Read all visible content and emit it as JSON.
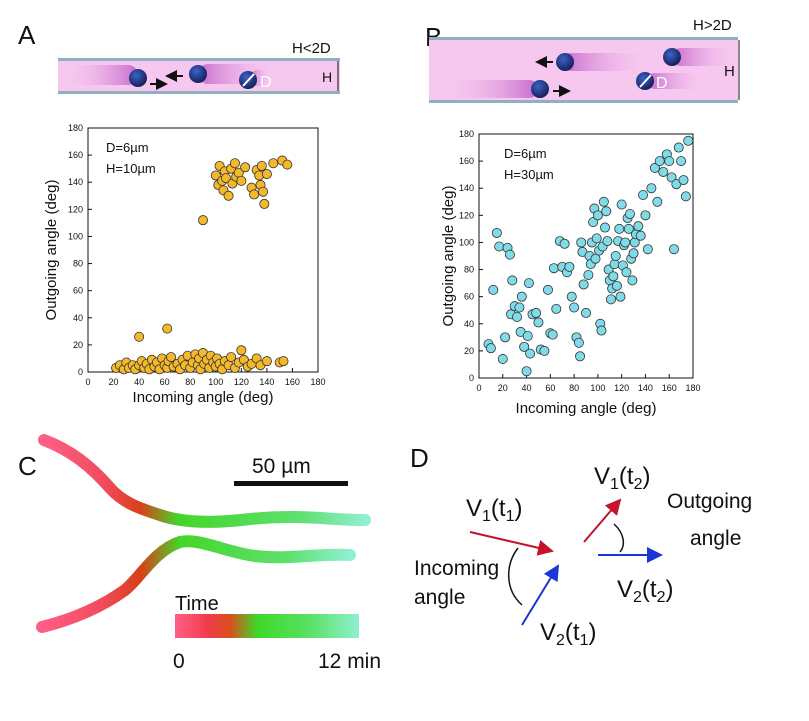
{
  "panels": {
    "A": {
      "label": "A",
      "channel": {
        "height_label": "H<2D",
        "h_symbol": "H",
        "d_symbol": "D"
      },
      "legend": {
        "d_text": "D=6µm",
        "h_text": "H=10µm"
      }
    },
    "B": {
      "label": "B",
      "channel": {
        "height_label": "H>2D",
        "h_symbol": "H",
        "d_symbol": "D"
      },
      "legend": {
        "d_text": "D=6µm",
        "h_text": "H=30µm"
      }
    },
    "C": {
      "label": "C",
      "scale_bar": "50 µm",
      "time_label": "Time",
      "time_start": "0",
      "time_end": "12 min"
    },
    "D": {
      "label": "D",
      "v1t1_main": "V",
      "v1t1_sub": "1",
      "v1t1_arg": "(t",
      "v1t1_argsub": "1",
      "v1t1_close": ")",
      "v1t2_main": "V",
      "v1t2_sub": "1",
      "v1t2_arg": "(t",
      "v1t2_argsub": "2",
      "v1t2_close": ")",
      "v2t1_main": "V",
      "v2t1_sub": "2",
      "v2t1_arg": "(t",
      "v2t1_argsub": "1",
      "v2t1_close": ")",
      "v2t2_main": "V",
      "v2t2_sub": "2",
      "v2t2_arg": "(t",
      "v2t2_argsub": "2",
      "v2t2_close": ")",
      "incoming_line1": "Incoming",
      "incoming_line2": "angle",
      "outgoing_line1": "Outgoing",
      "outgoing_line2": "angle"
    }
  },
  "colors": {
    "channel_fill": "#f7c8ef",
    "channel_wall": "#8fb0c0",
    "particle": "#2b3f8c",
    "scatter_A": "#f5b82a",
    "scatter_B": "#7fdbe8",
    "red_arrow": "#c4122f",
    "blue_arrow": "#1a36d6",
    "trace_start": "#ff5f86",
    "trace_mid": "#e03a1a",
    "trace_green": "#3ed92a",
    "trace_end": "#8ff0d0"
  },
  "chart_data": [
    {
      "type": "scatter",
      "panel": "A",
      "xlabel": "Incoming angle (deg)",
      "ylabel": "Outgoing angle (deg)",
      "xlim": [
        0,
        180
      ],
      "ylim": [
        0,
        180
      ],
      "xticks": [
        0,
        20,
        40,
        60,
        80,
        100,
        120,
        140,
        160,
        180
      ],
      "yticks": [
        0,
        20,
        40,
        60,
        80,
        100,
        120,
        140,
        160,
        180
      ],
      "series": [
        {
          "name": "H=10µm",
          "points": [
            [
              22,
              3
            ],
            [
              25,
              5
            ],
            [
              28,
              2
            ],
            [
              30,
              7
            ],
            [
              32,
              3
            ],
            [
              35,
              5
            ],
            [
              37,
              2
            ],
            [
              40,
              5
            ],
            [
              42,
              8
            ],
            [
              44,
              3
            ],
            [
              46,
              6
            ],
            [
              48,
              2
            ],
            [
              50,
              9
            ],
            [
              52,
              4
            ],
            [
              54,
              7
            ],
            [
              56,
              2
            ],
            [
              58,
              10
            ],
            [
              60,
              5
            ],
            [
              62,
              3
            ],
            [
              63,
              8
            ],
            [
              65,
              11
            ],
            [
              67,
              4
            ],
            [
              70,
              6
            ],
            [
              72,
              2
            ],
            [
              74,
              9
            ],
            [
              76,
              5
            ],
            [
              78,
              12
            ],
            [
              80,
              3
            ],
            [
              82,
              7
            ],
            [
              84,
              13
            ],
            [
              86,
              5
            ],
            [
              87,
              10
            ],
            [
              88,
              2
            ],
            [
              90,
              14
            ],
            [
              91,
              6
            ],
            [
              93,
              9
            ],
            [
              95,
              3
            ],
            [
              96,
              12
            ],
            [
              98,
              7
            ],
            [
              100,
              4
            ],
            [
              101,
              10
            ],
            [
              103,
              6
            ],
            [
              105,
              2
            ],
            [
              107,
              8
            ],
            [
              110,
              5
            ],
            [
              112,
              11
            ],
            [
              115,
              3
            ],
            [
              118,
              7
            ],
            [
              120,
              16
            ],
            [
              122,
              9
            ],
            [
              125,
              4
            ],
            [
              128,
              6
            ],
            [
              132,
              10
            ],
            [
              135,
              5
            ],
            [
              140,
              8
            ],
            [
              150,
              7
            ],
            [
              153,
              8
            ],
            [
              40,
              26
            ],
            [
              62,
              32
            ],
            [
              90,
              112
            ],
            [
              100,
              145
            ],
            [
              102,
              138
            ],
            [
              103,
              152
            ],
            [
              105,
              141
            ],
            [
              106,
              134
            ],
            [
              107,
              148
            ],
            [
              108,
              143
            ],
            [
              110,
              130
            ],
            [
              112,
              150
            ],
            [
              113,
              139
            ],
            [
              115,
              154
            ],
            [
              116,
              144
            ],
            [
              118,
              147
            ],
            [
              120,
              141
            ],
            [
              123,
              151
            ],
            [
              128,
              136
            ],
            [
              130,
              131
            ],
            [
              132,
              149
            ],
            [
              134,
              145
            ],
            [
              135,
              138
            ],
            [
              136,
              152
            ],
            [
              137,
              133
            ],
            [
              138,
              124
            ],
            [
              140,
              146
            ],
            [
              145,
              154
            ],
            [
              152,
              156
            ],
            [
              156,
              153
            ]
          ]
        }
      ]
    },
    {
      "type": "scatter",
      "panel": "B",
      "xlabel": "Incoming angle (deg)",
      "ylabel": "Outgoing angle (deg)",
      "xlim": [
        0,
        180
      ],
      "ylim": [
        0,
        180
      ],
      "xticks": [
        0,
        20,
        40,
        60,
        80,
        100,
        120,
        140,
        160,
        180
      ],
      "yticks": [
        0,
        20,
        40,
        60,
        80,
        100,
        120,
        140,
        160,
        180
      ],
      "series": [
        {
          "name": "H=30µm",
          "points": [
            [
              8,
              25
            ],
            [
              10,
              22
            ],
            [
              12,
              65
            ],
            [
              15,
              107
            ],
            [
              17,
              97
            ],
            [
              20,
              14
            ],
            [
              22,
              30
            ],
            [
              24,
              96
            ],
            [
              26,
              91
            ],
            [
              27,
              47
            ],
            [
              28,
              72
            ],
            [
              30,
              53
            ],
            [
              32,
              45
            ],
            [
              34,
              52
            ],
            [
              35,
              34
            ],
            [
              36,
              60
            ],
            [
              38,
              23
            ],
            [
              40,
              5
            ],
            [
              41,
              31
            ],
            [
              42,
              70
            ],
            [
              43,
              18
            ],
            [
              45,
              47
            ],
            [
              48,
              48
            ],
            [
              50,
              41
            ],
            [
              52,
              21
            ],
            [
              55,
              20
            ],
            [
              58,
              65
            ],
            [
              60,
              33
            ],
            [
              62,
              32
            ],
            [
              63,
              81
            ],
            [
              65,
              51
            ],
            [
              68,
              101
            ],
            [
              70,
              82
            ],
            [
              72,
              99
            ],
            [
              74,
              78
            ],
            [
              76,
              82
            ],
            [
              78,
              60
            ],
            [
              80,
              52
            ],
            [
              82,
              30
            ],
            [
              84,
              26
            ],
            [
              85,
              16
            ],
            [
              86,
              100
            ],
            [
              87,
              93
            ],
            [
              88,
              69
            ],
            [
              90,
              48
            ],
            [
              92,
              76
            ],
            [
              93,
              90
            ],
            [
              94,
              84
            ],
            [
              95,
              100
            ],
            [
              96,
              115
            ],
            [
              97,
              125
            ],
            [
              98,
              88
            ],
            [
              99,
              103
            ],
            [
              100,
              120
            ],
            [
              101,
              94
            ],
            [
              102,
              40
            ],
            [
              103,
              35
            ],
            [
              104,
              97
            ],
            [
              105,
              130
            ],
            [
              106,
              111
            ],
            [
              107,
              123
            ],
            [
              108,
              101
            ],
            [
              109,
              80
            ],
            [
              110,
              72
            ],
            [
              111,
              58
            ],
            [
              112,
              66
            ],
            [
              113,
              75
            ],
            [
              114,
              84
            ],
            [
              115,
              90
            ],
            [
              116,
              68
            ],
            [
              117,
              101
            ],
            [
              118,
              110
            ],
            [
              119,
              60
            ],
            [
              120,
              128
            ],
            [
              121,
              83
            ],
            [
              122,
              98
            ],
            [
              123,
              100
            ],
            [
              124,
              78
            ],
            [
              125,
              118
            ],
            [
              126,
              110
            ],
            [
              127,
              121
            ],
            [
              128,
              88
            ],
            [
              129,
              72
            ],
            [
              130,
              92
            ],
            [
              131,
              100
            ],
            [
              132,
              106
            ],
            [
              134,
              112
            ],
            [
              136,
              105
            ],
            [
              138,
              135
            ],
            [
              140,
              120
            ],
            [
              142,
              95
            ],
            [
              145,
              140
            ],
            [
              148,
              155
            ],
            [
              150,
              130
            ],
            [
              152,
              160
            ],
            [
              155,
              152
            ],
            [
              158,
              165
            ],
            [
              160,
              160
            ],
            [
              162,
              148
            ],
            [
              164,
              95
            ],
            [
              166,
              143
            ],
            [
              168,
              170
            ],
            [
              170,
              160
            ],
            [
              172,
              146
            ],
            [
              174,
              134
            ],
            [
              176,
              175
            ]
          ]
        }
      ]
    }
  ]
}
